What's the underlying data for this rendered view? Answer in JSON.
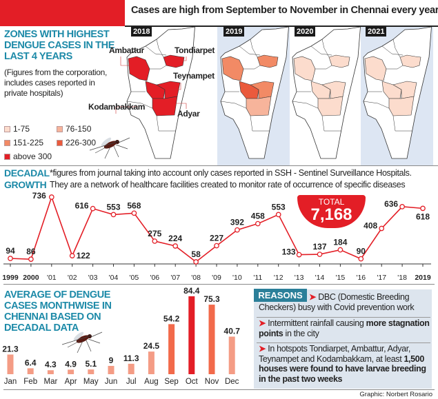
{
  "header": {
    "headline": "Cases are high from September to November in Chennai every year"
  },
  "zones": {
    "title": "ZONES WITH HIGHEST DENGUE CASES IN THE LAST 4 YEARS",
    "note": "(Figures from the corporation, includes cases reported in private hospitals)",
    "legend": [
      {
        "label": "1-75",
        "color": "#fcdccd"
      },
      {
        "label": "76-150",
        "color": "#f7b49b"
      },
      {
        "label": "151-225",
        "color": "#f28a65"
      },
      {
        "label": "226-300",
        "color": "#ea5a3c"
      },
      {
        "label": "above 300",
        "color": "#e31e26"
      }
    ],
    "zone_labels": [
      "Ambattur",
      "Tondiarpet",
      "Teynampet",
      "Kodambakkam",
      "Adyar"
    ],
    "maps": [
      {
        "year": "2018",
        "background": "#ffffff",
        "zones": {
          "Ambattur": "above 300",
          "Tondiarpet": "above 300",
          "Teynampet": "above 300",
          "Kodambakkam": "above 300",
          "Adyar": "above 300"
        }
      },
      {
        "year": "2019",
        "background": "#dde6f3",
        "zones": {
          "Ambattur": "151-225",
          "Tondiarpet": "151-225",
          "Teynampet": "151-225",
          "Kodambakkam": "226-300",
          "Adyar": "76-150"
        }
      },
      {
        "year": "2020",
        "background": "#ffffff",
        "zones": {
          "Ambattur": "1-75",
          "Tondiarpet": "1-75",
          "Teynampet": "1-75",
          "Kodambakkam": "1-75",
          "Adyar": "1-75"
        }
      },
      {
        "year": "2021",
        "background": "#dde6f3",
        "zones": {
          "Ambattur": "1-75",
          "Tondiarpet": "1-75",
          "Teynampet": "1-75",
          "Kodambakkam": "1-75",
          "Adyar": "1-75"
        }
      }
    ]
  },
  "decadal": {
    "title_line1": "DECADAL",
    "title_line2": "GROWTH",
    "note_line1": "*figures from journal taking into account only cases reported in SSH - Sentinel Surveillance Hospitals.",
    "note_line2": "They are a network of healthcare facilities created to monitor rate of occurrence of specific diseases",
    "total_label": "TOTAL",
    "total_value": "7,168"
  },
  "monthly": {
    "title": "AVERAGE OF DENGUE CASES MONTHWISE IN CHENNAI BASED ON DECADAL DATA"
  },
  "reasons": {
    "label": "REASONS",
    "items": [
      [
        {
          "t": "DBC (Domestic Breeding Checkers) busy with Covid prevention work",
          "b": false
        }
      ],
      [
        {
          "t": "Intermittent rainfall causing ",
          "b": false
        },
        {
          "t": "more stagnation points",
          "b": true
        },
        {
          "t": " in the city",
          "b": false
        }
      ],
      [
        {
          "t": "In hotspots Tondiarpet, Ambattur, Adyar, Teynampet and Kodambakkam, at least ",
          "b": false
        },
        {
          "t": "1,500 houses were found to have larvae breeding in the past two weeks",
          "b": true
        }
      ]
    ]
  },
  "footer": {
    "credit": "Graphic: Norbert Rosario"
  },
  "chart_data": [
    {
      "type": "line",
      "title": "DECADAL GROWTH",
      "categories": [
        "1999",
        "2000",
        "'01",
        "'02",
        "'03",
        "'04",
        "'05",
        "'06",
        "'07",
        "'08",
        "'09",
        "'10",
        "'11",
        "'12",
        "'13",
        "'14",
        "'15",
        "'16",
        "'17",
        "'18",
        "2019"
      ],
      "values": [
        94,
        86,
        736,
        122,
        616,
        553,
        568,
        275,
        224,
        58,
        227,
        392,
        458,
        553,
        133,
        137,
        184,
        90,
        408,
        636,
        618
      ],
      "color": "#e31e26"
    },
    {
      "type": "bar",
      "title": "AVERAGE OF DENGUE CASES MONTHWISE IN CHENNAI BASED ON DECADAL DATA",
      "categories": [
        "Jan",
        "Feb",
        "Mar",
        "Apr",
        "May",
        "Jun",
        "Jul",
        "Aug",
        "Sep",
        "Oct",
        "Nov",
        "Dec"
      ],
      "values": [
        21.3,
        6.4,
        4.3,
        4.9,
        5.1,
        9,
        11.3,
        24.5,
        54.2,
        84.4,
        75.3,
        40.7
      ],
      "labels": [
        "21.3",
        "6.4",
        "4.3",
        "4.9",
        "5.1",
        "9",
        "11.3",
        "24.5",
        "54.2",
        "84.4",
        "75.3",
        "40.7"
      ],
      "colors": [
        "#f49c85",
        "#f49c85",
        "#f49c85",
        "#f49c85",
        "#f49c85",
        "#f49c85",
        "#f49c85",
        "#f49c85",
        "#f26a4b",
        "#e31e26",
        "#f26a4b",
        "#f49c85"
      ]
    }
  ]
}
